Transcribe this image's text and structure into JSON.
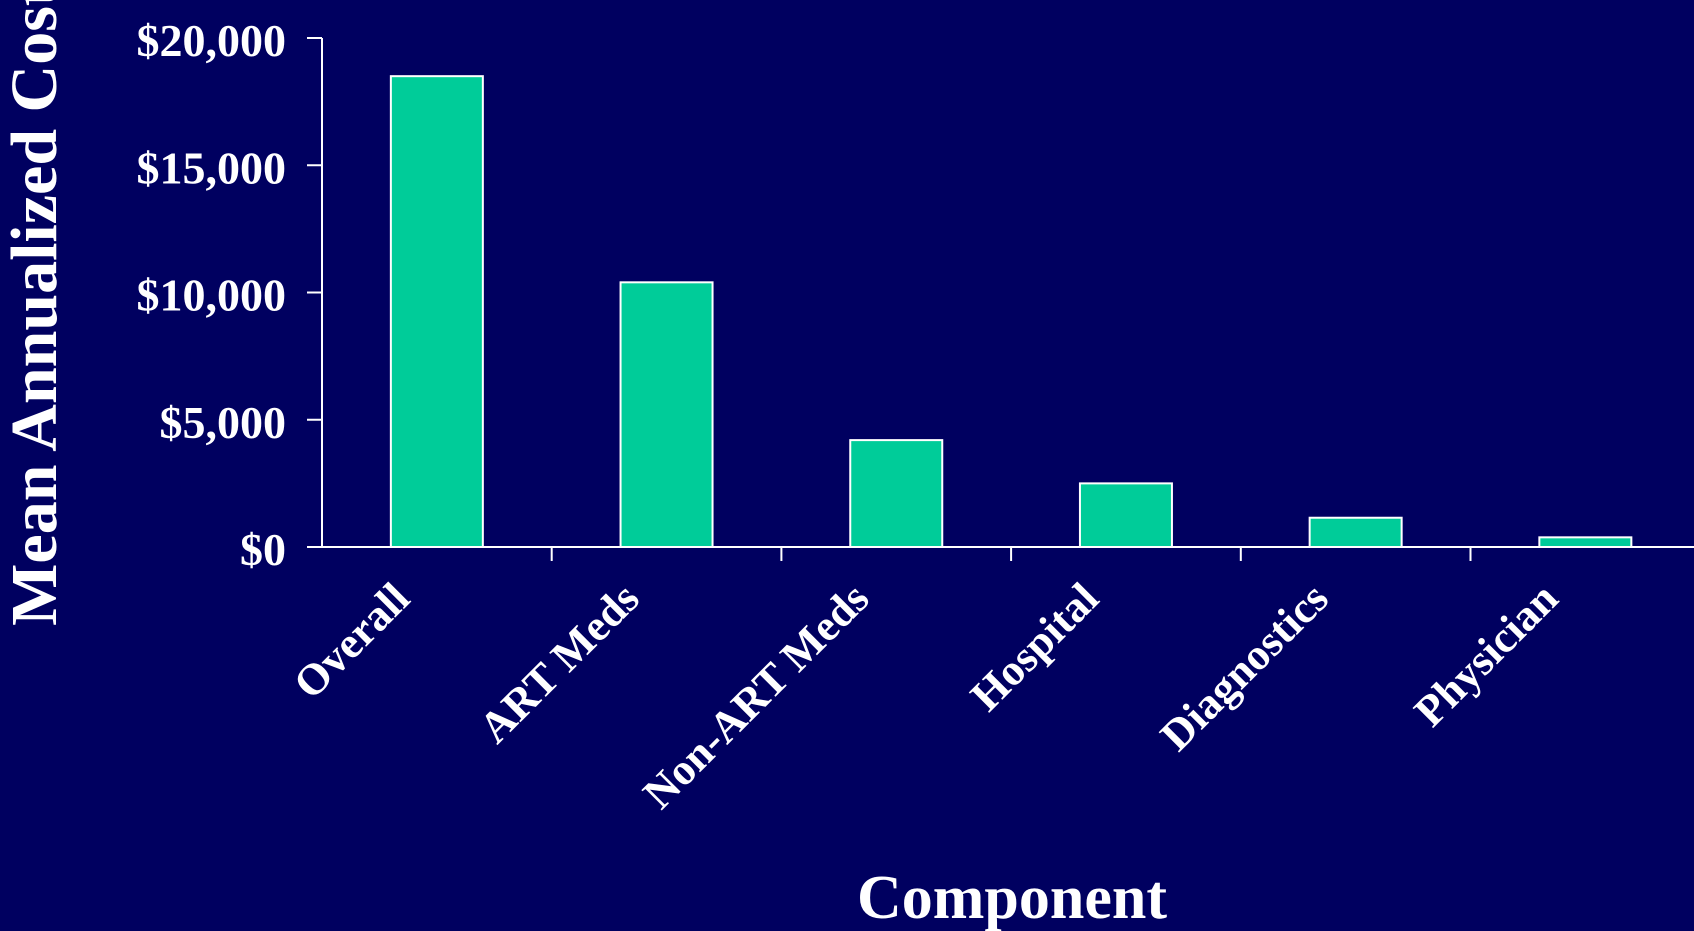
{
  "chart_data": {
    "type": "bar",
    "categories": [
      "Overall",
      "ART Meds",
      "Non-ART Meds",
      "Hospital",
      "Diagnostics",
      "Physician"
    ],
    "values": [
      18500,
      10400,
      4200,
      2500,
      1150,
      380
    ],
    "xlabel": "Component",
    "ylabel": "Mean Annualized Cost",
    "ylim": [
      0,
      20000
    ],
    "yticks": [
      0,
      5000,
      10000,
      15000,
      20000
    ],
    "ytick_labels": [
      "$0",
      "$5,000",
      "$10,000",
      "$15,000",
      "$20,000"
    ],
    "grid": false,
    "colors": {
      "background": "#000060",
      "bar_fill": "#00cc99",
      "bar_stroke": "#ffffff",
      "axis": "#ffffff",
      "text": "#ffffff"
    }
  }
}
